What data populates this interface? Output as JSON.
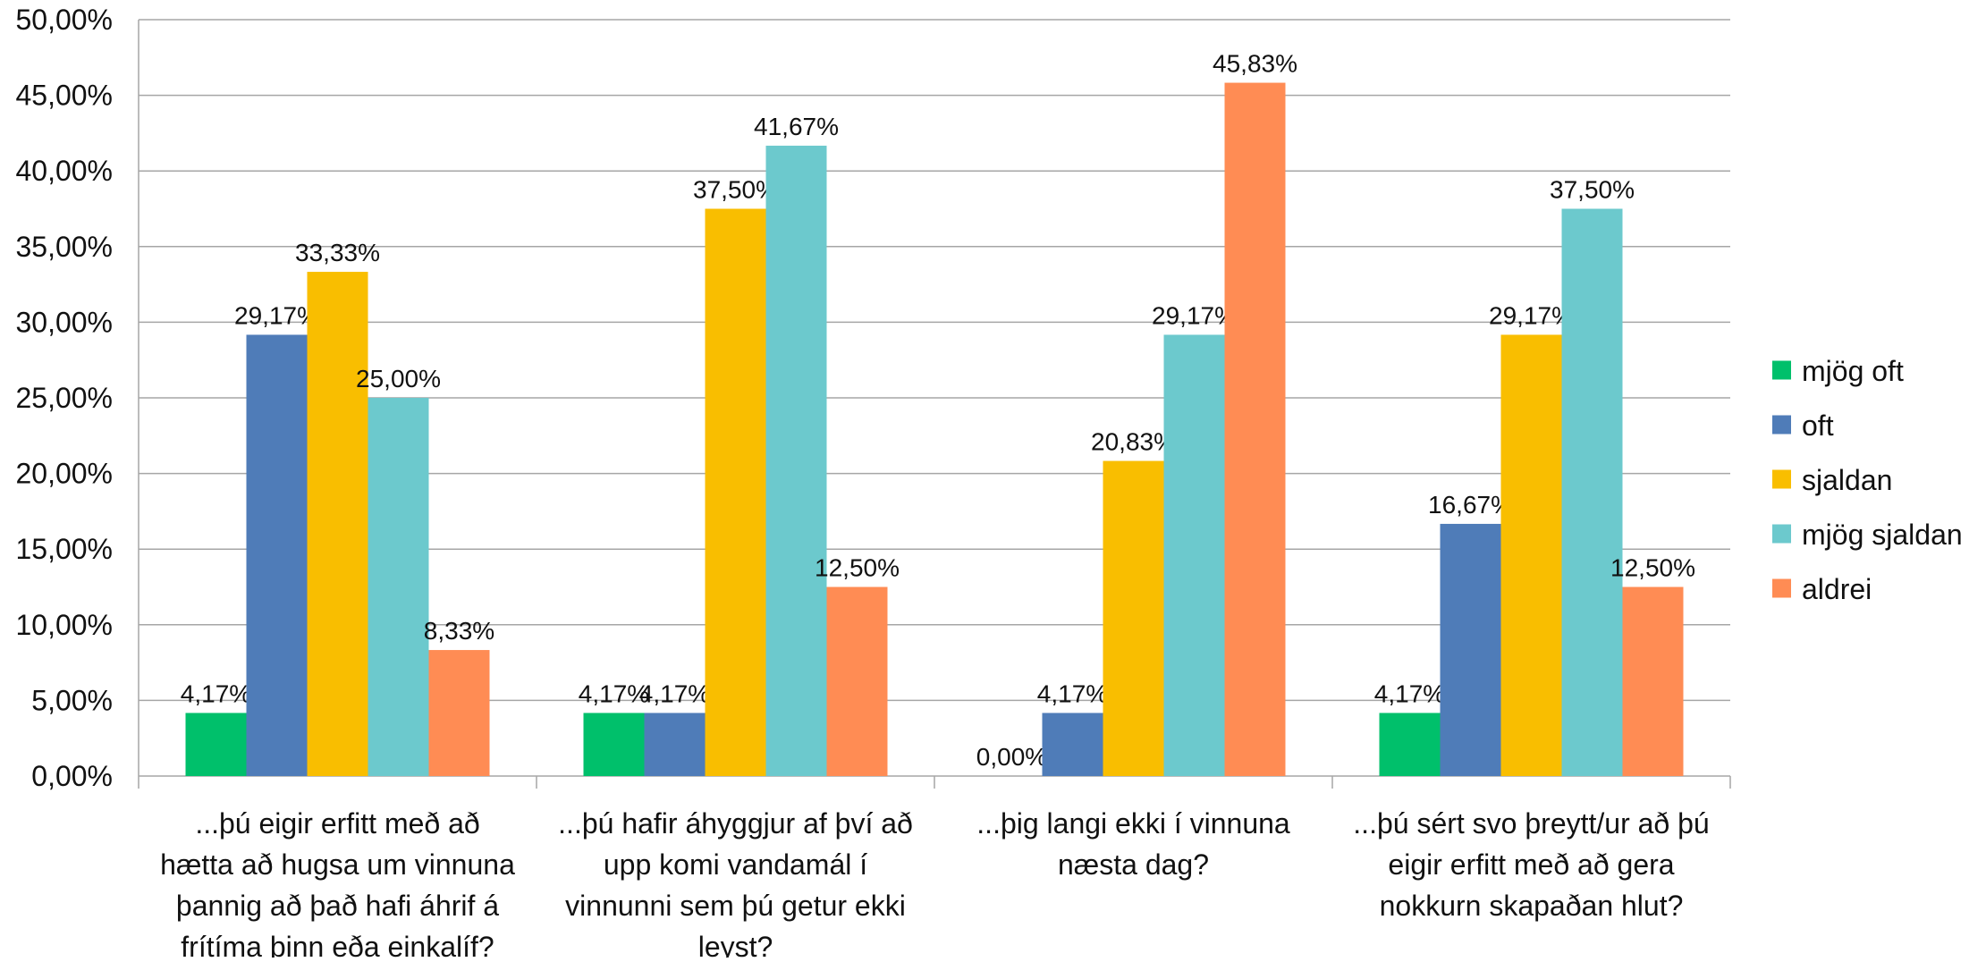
{
  "chart_data": {
    "type": "bar",
    "title": "",
    "xlabel": "",
    "ylabel": "",
    "ylim": [
      0,
      50
    ],
    "y_ticks": [
      0,
      5,
      10,
      15,
      20,
      25,
      30,
      35,
      40,
      45,
      50
    ],
    "y_tick_labels": [
      "0,00%",
      "5,00%",
      "10,00%",
      "15,00%",
      "20,00%",
      "25,00%",
      "30,00%",
      "35,00%",
      "40,00%",
      "45,00%",
      "50,00%"
    ],
    "grid": true,
    "legend_position": "right",
    "categories": [
      [
        "...þú eigir erfitt með að",
        "hætta að hugsa um vinnuna",
        "þannig að það hafi áhrif á",
        "frítíma þinn eða einkalíf?"
      ],
      [
        "...þú hafir áhyggjur af því að",
        "upp komi vandamál í",
        "vinnunni sem þú getur ekki",
        "leyst?"
      ],
      [
        "...þig langi ekki í vinnuna",
        "næsta dag?"
      ],
      [
        "...þú sért svo þreytt/ur að þú",
        "eigir erfitt með að gera",
        "nokkurn skapaðan hlut?"
      ]
    ],
    "series": [
      {
        "name": "mjög oft",
        "color": "#00C06B",
        "values": [
          4.17,
          4.17,
          0.0,
          4.17
        ],
        "labels": [
          "4,17%",
          "4,17%",
          "0,00%",
          "4,17%"
        ]
      },
      {
        "name": "oft",
        "color": "#4F7CB8",
        "values": [
          29.17,
          4.17,
          4.17,
          16.67
        ],
        "labels": [
          "29,17%",
          "4,17%",
          "4,17%",
          "16,67%"
        ]
      },
      {
        "name": "sjaldan",
        "color": "#F9BE00",
        "values": [
          33.33,
          37.5,
          20.83,
          29.17
        ],
        "labels": [
          "33,33%",
          "37,50%",
          "20,83%",
          "29,17%"
        ]
      },
      {
        "name": "mjög sjaldan",
        "color": "#6CC9CD",
        "values": [
          25.0,
          41.67,
          29.17,
          37.5
        ],
        "labels": [
          "25,00%",
          "41,67%",
          "29,17%",
          "37,50%"
        ]
      },
      {
        "name": "aldrei",
        "color": "#FF8C54",
        "values": [
          8.33,
          12.5,
          45.83,
          12.5
        ],
        "labels": [
          "8,33%",
          "12,50%",
          "45,83%",
          "12,50%"
        ]
      }
    ]
  }
}
